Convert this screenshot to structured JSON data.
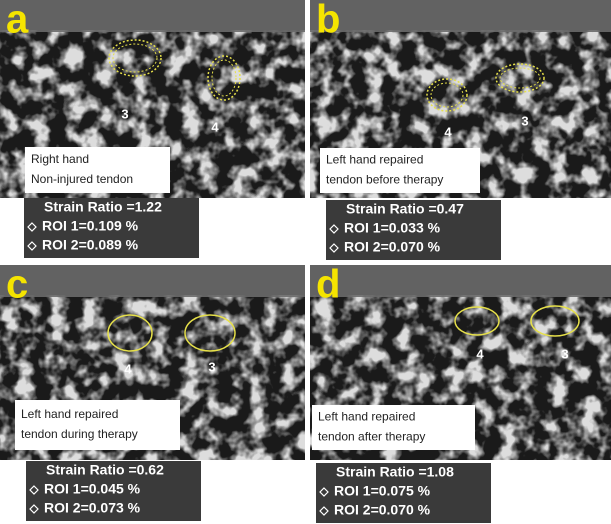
{
  "panels": [
    {
      "letter": "a",
      "label": [
        "Right hand",
        "Non-injured tendon"
      ],
      "roi_numbers": [
        "3",
        "4"
      ],
      "strain_ratio": "Strain Ratio =1.22",
      "roi_1": "ROI 1=0.109 %",
      "roi_2": "ROI 2=0.089 %"
    },
    {
      "letter": "b",
      "label": [
        "Left hand repaired",
        "tendon before therapy"
      ],
      "roi_numbers": [
        "4",
        "3"
      ],
      "strain_ratio": "Strain Ratio =0.47",
      "roi_1": "ROI 1=0.033 %",
      "roi_2": "ROI 2=0.070 %"
    },
    {
      "letter": "c",
      "label": [
        "Left hand repaired",
        "tendon during therapy"
      ],
      "roi_numbers": [
        "4",
        "3"
      ],
      "strain_ratio": "Strain Ratio =0.62",
      "roi_1": "ROI 1=0.045 %",
      "roi_2": "ROI 2=0.073 %"
    },
    {
      "letter": "d",
      "label": [
        "Left hand repaired",
        "tendon after therapy"
      ],
      "roi_numbers": [
        "4",
        "3"
      ],
      "strain_ratio": "Strain Ratio =1.08",
      "roi_1": "ROI 1=0.075 %",
      "roi_2": "ROI 2=0.070 %"
    }
  ]
}
